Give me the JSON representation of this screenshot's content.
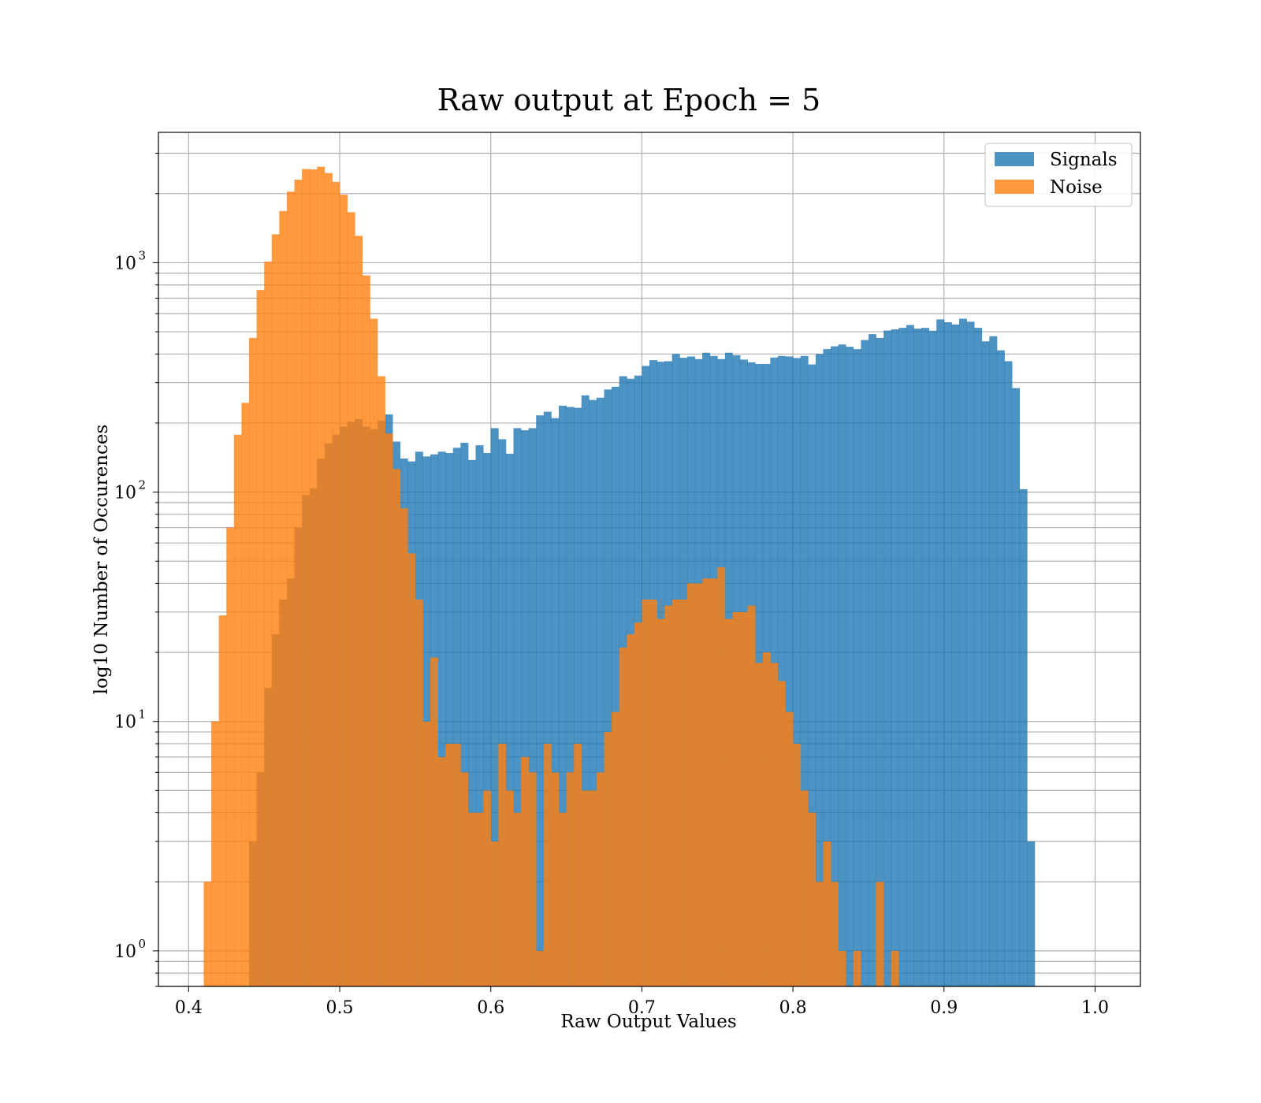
{
  "chart_data": {
    "type": "bar",
    "title": "Raw output at Epoch = 5",
    "xlabel": "Raw Output Values",
    "ylabel": "log10 Number of Occurences",
    "xlim": [
      0.38,
      1.03
    ],
    "ylim": [
      0.7,
      3700
    ],
    "yscale": "log",
    "grid": true,
    "legend_position": "top-right",
    "bin_width": 0.005,
    "x_ticks": [
      {
        "value": 0.4,
        "label": "0.4"
      },
      {
        "value": 0.5,
        "label": "0.5"
      },
      {
        "value": 0.6,
        "label": "0.6"
      },
      {
        "value": 0.7,
        "label": "0.7"
      },
      {
        "value": 0.8,
        "label": "0.8"
      },
      {
        "value": 0.9,
        "label": "0.9"
      },
      {
        "value": 1.0,
        "label": "1.0"
      }
    ],
    "y_ticks": [
      {
        "value": 1,
        "base": "10",
        "exp": "0"
      },
      {
        "value": 10,
        "base": "10",
        "exp": "1"
      },
      {
        "value": 100,
        "base": "10",
        "exp": "2"
      },
      {
        "value": 1000,
        "base": "10",
        "exp": "3"
      }
    ],
    "series": [
      {
        "name": "Signals",
        "color": "#1f77b4",
        "opacity": 0.8,
        "bin_start": 0.44,
        "values": [
          3,
          6,
          14,
          24,
          34,
          42,
          70,
          97,
          104,
          140,
          163,
          178,
          193,
          203,
          208,
          193,
          188,
          205,
          218,
          166,
          140,
          136,
          150,
          143,
          146,
          150,
          148,
          156,
          164,
          138,
          160,
          148,
          190,
          170,
          147,
          190,
          186,
          190,
          216,
          224,
          210,
          238,
          235,
          233,
          264,
          252,
          258,
          280,
          288,
          320,
          312,
          322,
          355,
          376,
          370,
          372,
          400,
          385,
          390,
          380,
          405,
          392,
          380,
          405,
          395,
          378,
          368,
          362,
          362,
          386,
          392,
          390,
          384,
          392,
          360,
          400,
          420,
          432,
          440,
          430,
          420,
          460,
          488,
          470,
          506,
          512,
          520,
          535,
          516,
          520,
          505,
          566,
          550,
          538,
          570,
          553,
          520,
          454,
          478,
          415,
          372,
          284,
          103,
          3
        ]
      },
      {
        "name": "Noise",
        "color": "#ff7f0e",
        "opacity": 0.8,
        "bin_start": 0.41,
        "values": [
          2,
          10,
          29,
          70,
          178,
          245,
          470,
          760,
          1010,
          1330,
          1680,
          2040,
          2300,
          2560,
          2550,
          2620,
          2460,
          2250,
          1980,
          1660,
          1310,
          880,
          570,
          320,
          180,
          126,
          85,
          54,
          34,
          10,
          19,
          7,
          8,
          8,
          6,
          4,
          4,
          5,
          3,
          8,
          5,
          4,
          7,
          6,
          1,
          8,
          6,
          4,
          6,
          8,
          5,
          5,
          6,
          9,
          11,
          21,
          24,
          27,
          34,
          34,
          28,
          32,
          34,
          34,
          40,
          40,
          42,
          42,
          47,
          28,
          30,
          30,
          32,
          18,
          20,
          18,
          15,
          11,
          8,
          5,
          4,
          2,
          3,
          2,
          1,
          0,
          1,
          0,
          0,
          2,
          0,
          1
        ]
      }
    ]
  }
}
